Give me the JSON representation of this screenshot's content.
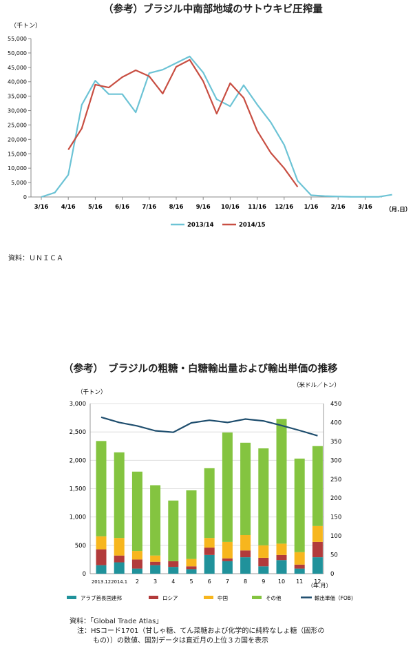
{
  "chart_data": [
    {
      "type": "line",
      "title": "（参考）ブラジル中南部地域のサトウキビ圧搾量",
      "yunit": "（千トン）",
      "xunit": "（月.日）",
      "ylim": [
        0,
        55000
      ],
      "yticks": [
        "0",
        "5,000",
        "10,000",
        "15,000",
        "20,000",
        "25,000",
        "30,000",
        "35,000",
        "40,000",
        "45,000",
        "50,000",
        "55,000"
      ],
      "x_ticks": [
        "3/16",
        "4/16",
        "5/16",
        "6/16",
        "7/16",
        "8/16",
        "9/16",
        "10/16",
        "11/16",
        "12/16",
        "1/16",
        "2/16",
        "3/16"
      ],
      "grid": false,
      "legend_position": "bottom",
      "series": [
        {
          "name": "2013/14",
          "color": "#6cc3d5",
          "values": [
            0,
            1500,
            7700,
            32000,
            40400,
            35700,
            35700,
            29400,
            43000,
            44200,
            46500,
            48800,
            43200,
            33900,
            31500,
            38800,
            32100,
            26000,
            18100,
            5600,
            600,
            300,
            150,
            50,
            50,
            50,
            800
          ]
        },
        {
          "name": "2014/15",
          "color": "#c84e42",
          "values": [
            null,
            null,
            16400,
            23800,
            39000,
            38000,
            41600,
            44000,
            41900,
            35900,
            45200,
            47600,
            40200,
            28900,
            39500,
            34400,
            23000,
            15400,
            10000,
            3500
          ]
        }
      ]
    },
    {
      "type": "bar",
      "title": "（参考）　ブラジルの粗糖・白糖輸出量および輸出単価の推移",
      "yunit_left": "（千トン）",
      "yunit_right": "（米ドル／トン）",
      "xunit": "（年.月）",
      "ylim_left": [
        0,
        3000
      ],
      "ylim_right": [
        0,
        450
      ],
      "yticks_left": [
        "0",
        "500",
        "1,000",
        "1,500",
        "2,000",
        "2,500",
        "3,000"
      ],
      "yticks_right": [
        "0",
        "50",
        "100",
        "150",
        "200",
        "250",
        "300",
        "350",
        "400",
        "450"
      ],
      "categories": [
        "2013.12",
        "2014.1",
        "2",
        "3",
        "4",
        "5",
        "6",
        "7",
        "8",
        "9",
        "10",
        "11",
        "12"
      ],
      "stacked": true,
      "legend_position": "bottom",
      "series": [
        {
          "name": "アラブ首長国連邦",
          "color": "#20929b",
          "values": [
            150,
            200,
            90,
            150,
            120,
            80,
            330,
            220,
            290,
            130,
            240,
            90,
            290
          ]
        },
        {
          "name": "ロシア",
          "color": "#b23b3b",
          "values": [
            280,
            120,
            160,
            60,
            100,
            50,
            130,
            50,
            120,
            150,
            90,
            70,
            270
          ]
        },
        {
          "name": "中国",
          "color": "#f7b61e",
          "values": [
            230,
            310,
            150,
            110,
            0,
            130,
            170,
            290,
            270,
            220,
            200,
            220,
            280
          ]
        },
        {
          "name": "その他",
          "color": "#84c440",
          "values": [
            1680,
            1510,
            1400,
            1240,
            1070,
            1210,
            1230,
            1930,
            1630,
            1710,
            2200,
            1650,
            1410
          ]
        }
      ],
      "line_series": {
        "name": "輸出単価（FOB)",
        "color": "#1f4e6e",
        "axis": "right",
        "values": [
          414,
          400,
          391,
          378,
          374,
          399,
          406,
          400,
          409,
          404,
          392,
          379,
          365
        ]
      }
    }
  ],
  "notes": {
    "source1": "資料：ＵＮＩＣＡ",
    "source2": "資料：「Global Trade Atlas」",
    "note_line1": "注：HSコード1701（甘しゃ糖、てん菜糖および化学的に純粋なしょ糖（固形の",
    "note_line2": "もの））の数値、国別データは直近月の上位３カ国を表示"
  }
}
